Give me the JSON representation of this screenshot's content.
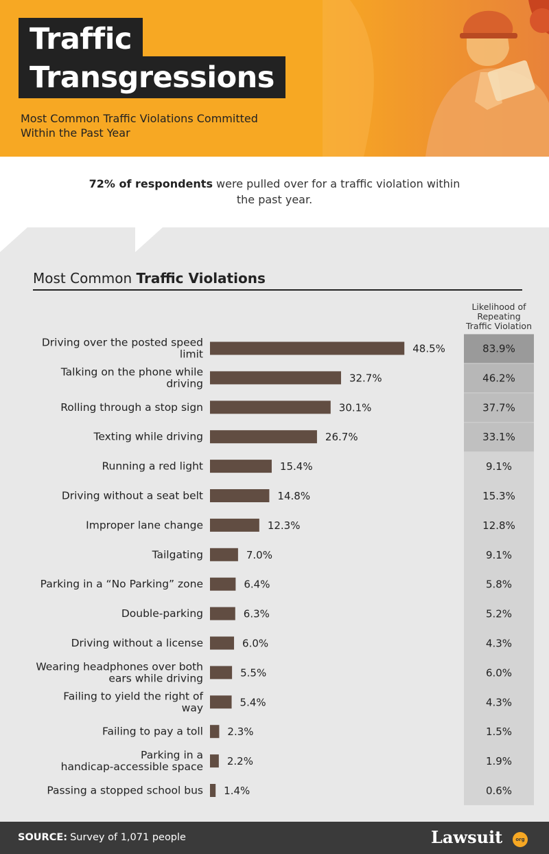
{
  "header": {
    "title_line1": "Traffic",
    "title_line2": "Transgressions",
    "subtitle": "Most Common Traffic Violations Committed Within the Past Year"
  },
  "intro": {
    "bold": "72% of respondents",
    "rest": " were pulled over for a traffic violation within the past year."
  },
  "chart_header": {
    "title_regular": "Most Common ",
    "title_bold": "Traffic Violations",
    "likelihood_header": "Likelihood of Repeating Traffic Violation"
  },
  "chart_data": {
    "type": "bar",
    "orientation": "horizontal",
    "title": "Most Common Traffic Violations",
    "categories": [
      "Driving over the posted speed limit",
      "Talking on the phone while driving",
      "Rolling through a stop sign",
      "Texting  while driving",
      "Running a red light",
      "Driving without a seat belt",
      "Improper lane change",
      "Tailgating",
      "Parking in a “No Parking” zone",
      "Double-parking",
      "Driving without a license",
      "Wearing headphones over both ears while driving",
      "Failing to yield the right of way",
      "Failing to pay a toll",
      "Parking in a handicap-accessible space",
      "Passing a stopped school bus"
    ],
    "values": [
      48.5,
      32.7,
      30.1,
      26.7,
      15.4,
      14.8,
      12.3,
      7.0,
      6.4,
      6.3,
      6.0,
      5.5,
      5.4,
      2.3,
      2.2,
      1.4
    ],
    "value_labels": [
      "48.5%",
      "32.7%",
      "30.1%",
      "26.7%",
      "15.4%",
      "14.8%",
      "12.3%",
      "7.0%",
      "6.4%",
      "6.3%",
      "6.0%",
      "5.5%",
      "5.4%",
      "2.3%",
      "2.2%",
      "1.4%"
    ],
    "likelihood_values": [
      83.9,
      46.2,
      37.7,
      33.1,
      9.1,
      15.3,
      12.8,
      9.1,
      5.8,
      5.2,
      4.3,
      6.0,
      4.3,
      1.5,
      1.9,
      0.6
    ],
    "likelihood_labels": [
      "83.9%",
      "46.2%",
      "37.7%",
      "33.1%",
      "9.1%",
      "15.3%",
      "12.8%",
      "9.1%",
      "5.8%",
      "5.2%",
      "4.3%",
      "6.0%",
      "4.3%",
      "1.5%",
      "1.9%",
      "0.6%"
    ],
    "xlim": [
      0,
      50
    ],
    "grid": false,
    "bar_color": "#614d42",
    "cell_shade_colors": [
      "#9a9a9a",
      "#b7b7b7",
      "#bdbdbd",
      "#c0c0c0",
      "#d4d4d4"
    ]
  },
  "footer": {
    "source_label": "SOURCE:",
    "source_text": "Survey of 1,071 people",
    "brand": "Lawsuit",
    "brand_suffix": "org"
  },
  "colors": {
    "accent": "#f7a823",
    "dark": "#222222",
    "footer_bg": "#3a3a3a"
  }
}
